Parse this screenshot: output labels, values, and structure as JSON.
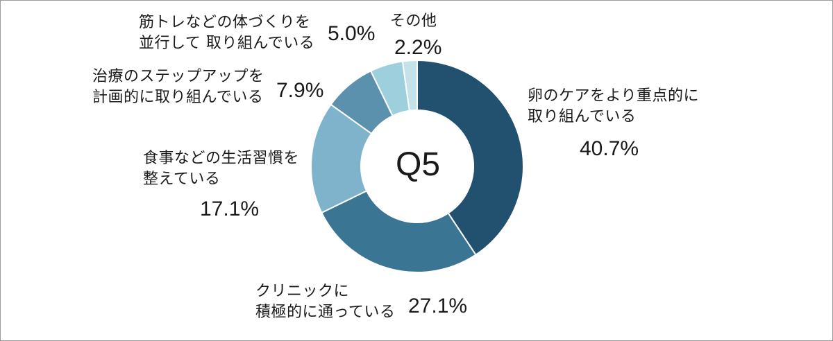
{
  "chart_data": {
    "type": "pie",
    "title": "Q5",
    "donut": true,
    "categories": [
      "卵のケアをより重点的に取り組んでいる",
      "クリニックに積極的に通っている",
      "食事などの生活習慣を整えている",
      "治療のステップアップを計画的に取り組んでいる",
      "筋トレなどの体づくりを並行して 取り組んでいる",
      "その他"
    ],
    "values": [
      40.7,
      27.1,
      17.1,
      7.9,
      5.0,
      2.2
    ],
    "value_labels": [
      "40.7%",
      "27.1%",
      "17.1%",
      "7.9%",
      "5.0%",
      "2.2%"
    ],
    "colors": [
      "#22506f",
      "#3b7594",
      "#7fb3cb",
      "#5c91ae",
      "#9ecfdd",
      "#c3e2ea"
    ]
  },
  "labels": {
    "egg_care": [
      "卵のケアをより重点的に",
      "取り組んでいる"
    ],
    "clinic": [
      "クリニックに",
      "積極的に通っている"
    ],
    "diet": [
      "食事などの生活習慣を",
      "整えている"
    ],
    "stepup": [
      "治療のステップアップを",
      "計画的に取り組んでいる"
    ],
    "training": [
      "筋トレなどの体づくりを",
      "並行して 取り組んでいる"
    ],
    "other": "その他"
  }
}
